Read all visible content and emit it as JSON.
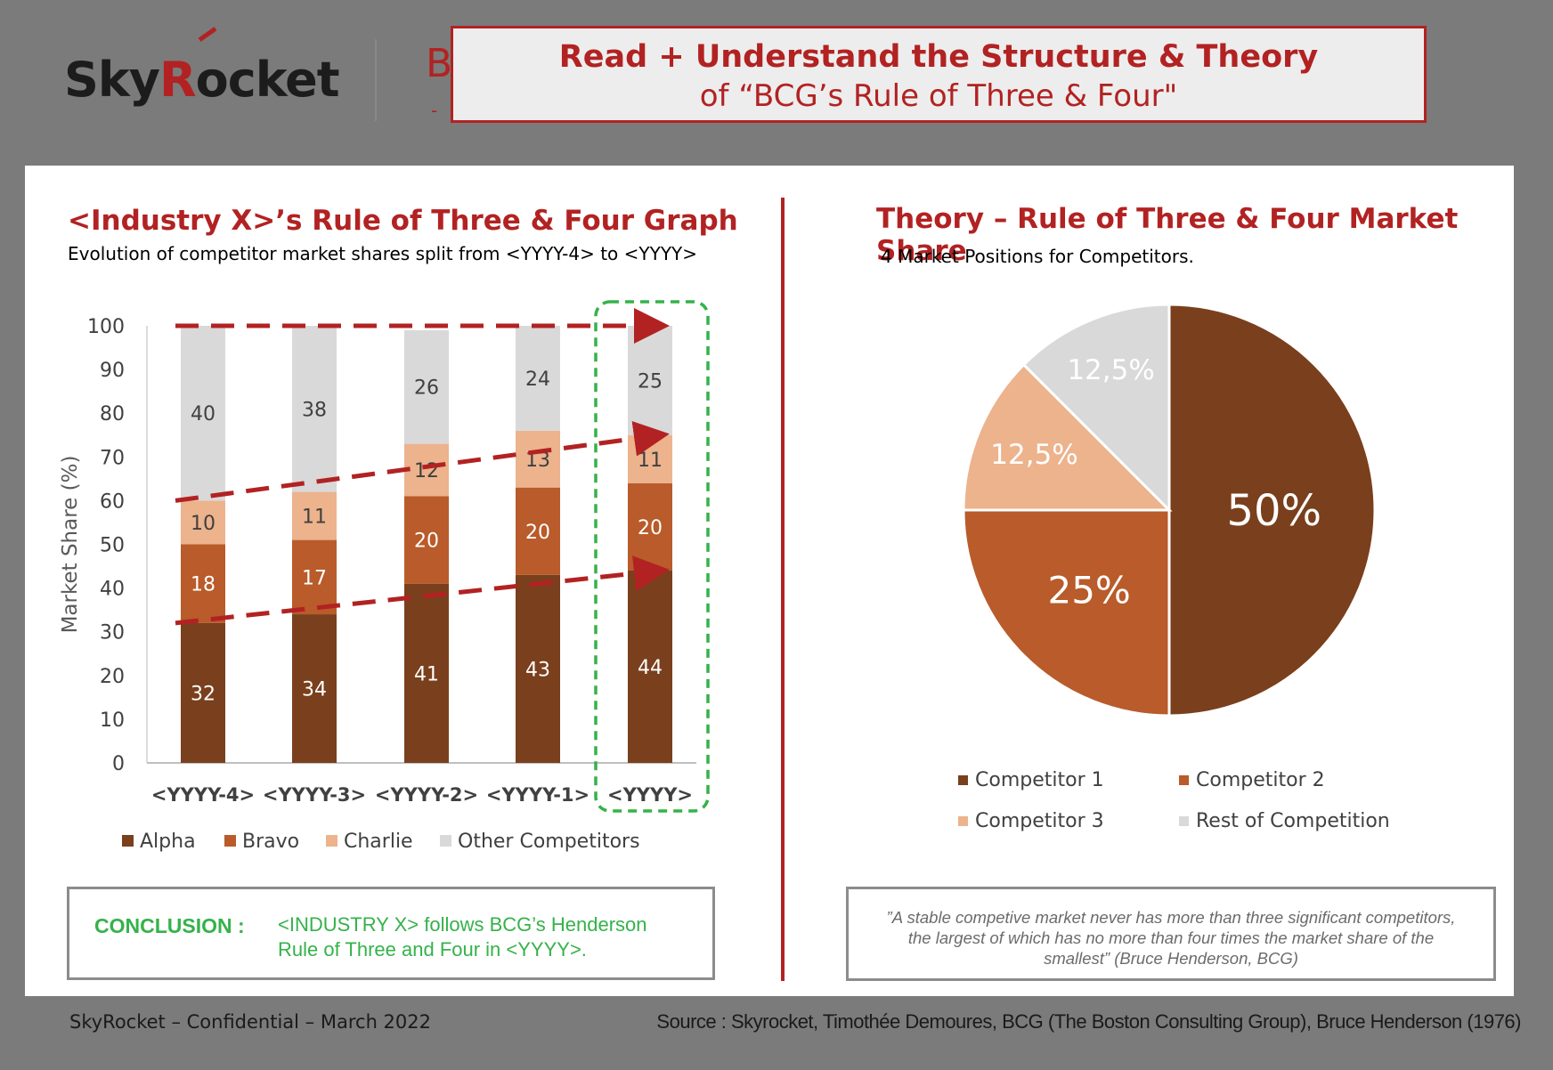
{
  "header": {
    "logo": {
      "part1": "Sky",
      "part2": "R",
      "part3": "ocket"
    },
    "peek_letter": "B",
    "peek_dash": "-",
    "title_line1": "Read + Understand the Structure & Theory",
    "title_line2": "of “BCG’s Rule of Three & Four\""
  },
  "left": {
    "title": "<Industry X>’s Rule of Three & Four Graph",
    "subtitle": "Evolution of competitor market shares split from <YYYY-4> to <YYYY>",
    "conclusion_label": "CONCLUSION :",
    "conclusion_text": "<INDUSTRY X> follows BCG’s Henderson Rule of Three and Four in <YYYY>."
  },
  "right": {
    "title": "Theory – Rule of Three & Four Market Share",
    "subtitle": "4 Market Positions for Competitors.",
    "quote": "”A stable competive market never has more than three significant competitors, the largest of which has no more than four times the market share of the smallest” (Bruce Henderson, BCG)"
  },
  "footer": {
    "left": "SkyRocket – Confidential – March 2022",
    "right": "Source : Skyrocket, Timothée Demoures,  BCG (The Boston Consulting Group), Bruce Henderson (1976)"
  },
  "chart_data": [
    {
      "type": "bar",
      "stacked": true,
      "categories": [
        "<YYYY-4>",
        "<YYYY-3>",
        "<YYYY-2>",
        "<YYYY-1>",
        "<YYYY>"
      ],
      "series": [
        {
          "name": "Alpha",
          "values": [
            32,
            34,
            41,
            43,
            44
          ],
          "color": "#7a3f1c",
          "label_color": "#ffffff"
        },
        {
          "name": "Bravo",
          "values": [
            18,
            17,
            20,
            20,
            20
          ],
          "color": "#b95b2a",
          "label_color": "#ffffff"
        },
        {
          "name": "Charlie",
          "values": [
            10,
            11,
            12,
            13,
            11
          ],
          "color": "#ecb38d",
          "label_color": "#404040"
        },
        {
          "name": "Other Competitors",
          "values": [
            40,
            38,
            26,
            24,
            25
          ],
          "color": "#d9d9d9",
          "label_color": "#404040"
        }
      ],
      "ylabel": "Market Share (%)",
      "ylim": [
        0,
        100
      ],
      "yticks": [
        0,
        10,
        20,
        30,
        40,
        50,
        60,
        70,
        80,
        90,
        100
      ],
      "grid": false,
      "legend": "bottom",
      "annotations": {
        "trend_arrows_color": "#b22222",
        "highlight_box_color": "#35b24a",
        "highlight_category": "<YYYY>"
      }
    },
    {
      "type": "pie",
      "labels": [
        "Competitor 1",
        "Competitor 2",
        "Competitor 3",
        "Rest of Competition"
      ],
      "values": [
        50,
        25,
        12.5,
        12.5
      ],
      "display": [
        "50%",
        "25%",
        "12,5%",
        "12,5%"
      ],
      "colors": [
        "#7a3f1c",
        "#b95b2a",
        "#ecb38d",
        "#d9d9d9"
      ],
      "legend": "bottom"
    }
  ]
}
